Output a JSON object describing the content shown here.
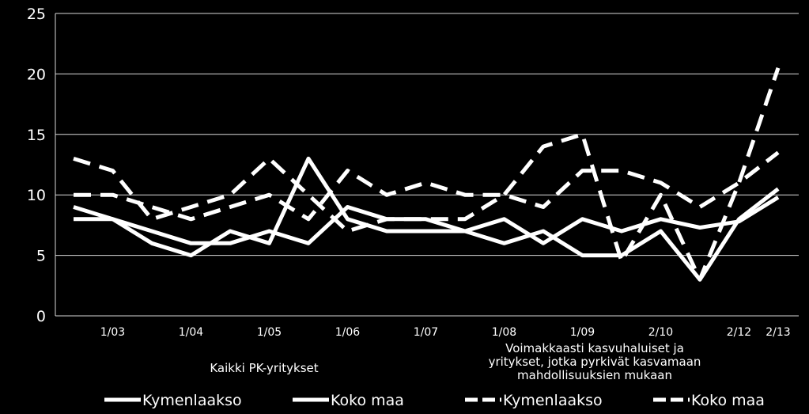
{
  "chart_data": {
    "type": "line",
    "ylim": [
      0,
      25
    ],
    "yticks": [
      0,
      5,
      10,
      15,
      20,
      25
    ],
    "grid": true,
    "x_tick_labels": [
      {
        "label": "1/03",
        "index": 1
      },
      {
        "label": "1/04",
        "index": 3
      },
      {
        "label": "1/05",
        "index": 5
      },
      {
        "label": "1/06",
        "index": 7
      },
      {
        "label": "1/07",
        "index": 9
      },
      {
        "label": "1/08",
        "index": 11
      },
      {
        "label": "1/09",
        "index": 13
      },
      {
        "label": "2/10",
        "index": 15
      },
      {
        "label": "2/12",
        "index": 17
      },
      {
        "label": "2/13",
        "index": 18
      }
    ],
    "group_labels": [
      {
        "lines": [
          "Kaikki PK-yritykset"
        ]
      },
      {
        "lines": [
          "Voimakkaasti kasvuhaluiset ja",
          "yritykset, jotka pyrkivät kasvamaan",
          "mahdollisuuksien mukaan"
        ]
      }
    ],
    "legend_position": "bottom",
    "series": [
      {
        "name": "Kymenlaakso",
        "style": "solid",
        "color": "#ffffff",
        "values": [
          9,
          8,
          6,
          5,
          7,
          6,
          13,
          8,
          7,
          7,
          7,
          8,
          6,
          8,
          7,
          8,
          7.3,
          7.8,
          9.8
        ]
      },
      {
        "name": "Koko maa",
        "style": "solid",
        "color": "#ffffff",
        "values": [
          8,
          8,
          7,
          6,
          6,
          7,
          6,
          9,
          8,
          8,
          7,
          6,
          7,
          5,
          5,
          7,
          3,
          8,
          10.5
        ]
      },
      {
        "name": "Kymenlaakso",
        "style": "dashed",
        "color": "#ffffff",
        "values": [
          13,
          12,
          8,
          9,
          10,
          13,
          10,
          7,
          8,
          8,
          8,
          10,
          14,
          15,
          4.5,
          10,
          3,
          11,
          20.5
        ]
      },
      {
        "name": "Koko maa",
        "style": "dashed",
        "color": "#ffffff",
        "values": [
          10,
          10,
          9,
          8,
          9,
          10,
          8,
          12,
          10,
          11,
          10,
          10,
          9,
          12,
          12,
          11,
          9,
          11,
          13.5
        ]
      }
    ],
    "legend": [
      {
        "label": "Kymenlaakso",
        "style": "solid"
      },
      {
        "label": "Koko maa",
        "style": "solid"
      },
      {
        "label": "Kymenlaakso",
        "style": "dashed"
      },
      {
        "label": "Koko maa",
        "style": "dashed"
      }
    ]
  }
}
